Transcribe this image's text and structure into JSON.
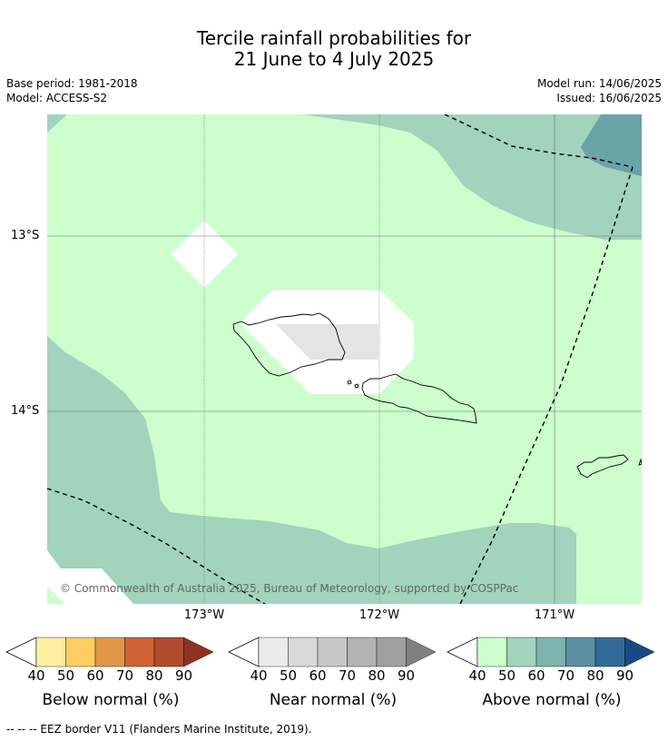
{
  "title_line1": "Tercile rainfall probabilities for",
  "title_line2": "21 June to 4 July 2025",
  "base_period": "Base period: 1981-2018",
  "model": "Model: ACCESS-S2",
  "model_run": "Model run: 14/06/2025",
  "issued": "Issued: 16/06/2025",
  "lat_labels": [
    "13°S",
    "14°S"
  ],
  "lon_labels": [
    "173°W",
    "172°W",
    "171°W"
  ],
  "copyright": "© Commonwealth of Australia 2025, Bureau of Meteorology, supported by COSPPac",
  "colors": {
    "above_40_50": "#ccffcc",
    "above_50_60": "#a1d3bd",
    "above_60_70": "#6aa3a8",
    "near_normal": "#e4e4e4",
    "no_category": "#ffffff"
  },
  "colorbars": [
    {
      "label": "Below normal (%)",
      "ticks": [
        "40",
        "50",
        "60",
        "70",
        "80",
        "90"
      ],
      "colors": [
        "#ffeea0",
        "#fecd63",
        "#e29746",
        "#cf6232",
        "#b04a2b",
        "#8f3320"
      ]
    },
    {
      "label": "Near normal (%)",
      "ticks": [
        "40",
        "50",
        "60",
        "70",
        "80",
        "90"
      ],
      "colors": [
        "#ebebeb",
        "#d9d9d9",
        "#c7c7c7",
        "#b3b3b3",
        "#a0a0a0",
        "#808080"
      ]
    },
    {
      "label": "Above normal (%)",
      "ticks": [
        "40",
        "50",
        "60",
        "70",
        "80",
        "90"
      ],
      "colors": [
        "#ccffcc",
        "#a1d3bd",
        "#7db3ad",
        "#5b90a3",
        "#326a98",
        "#134c85"
      ]
    }
  ],
  "footnote": "--  --  -- EEZ border V11 (Flanders Marine Institute, 2019)."
}
